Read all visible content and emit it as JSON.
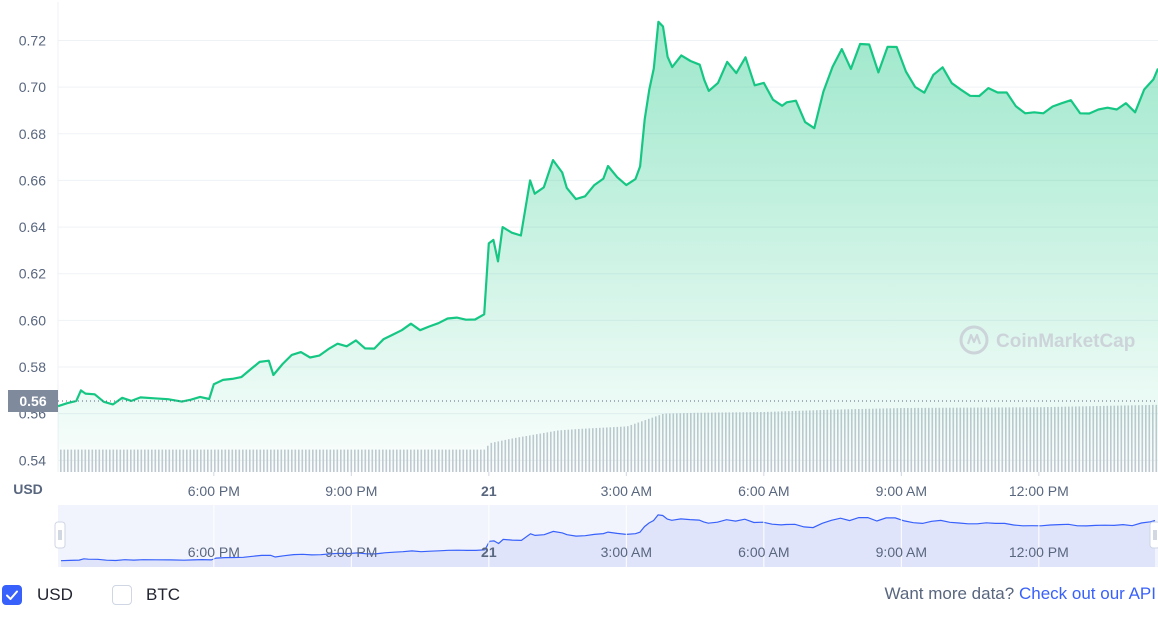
{
  "chart_data": {
    "type": "line",
    "title": "",
    "currency_label": "USD",
    "current_price_label": "0.56",
    "y_ticks": [
      "0.72",
      "0.70",
      "0.68",
      "0.66",
      "0.64",
      "0.62",
      "0.60",
      "0.58",
      "0.56",
      "0.54"
    ],
    "y_tick_values": [
      0.72,
      0.7,
      0.68,
      0.66,
      0.64,
      0.62,
      0.6,
      0.58,
      0.56,
      0.54
    ],
    "ylim": [
      0.535,
      0.7365
    ],
    "x_ticks": [
      {
        "label": "6:00 PM",
        "t": 18
      },
      {
        "label": "9:00 PM",
        "t": 21
      },
      {
        "label": "21",
        "t": 24
      },
      {
        "label": "3:00 AM",
        "t": 27
      },
      {
        "label": "6:00 AM",
        "t": 30
      },
      {
        "label": "9:00 AM",
        "t": 33
      },
      {
        "label": "12:00 PM",
        "t": 36
      }
    ],
    "x_range_hours": [
      14.6,
      38.6
    ],
    "series": [
      {
        "values": [
          [
            14.6,
            0.5632
          ],
          [
            14.8,
            0.5645
          ],
          [
            15.0,
            0.5655
          ],
          [
            15.1,
            0.57
          ],
          [
            15.2,
            0.5686
          ],
          [
            15.4,
            0.5683
          ],
          [
            15.6,
            0.5651
          ],
          [
            15.8,
            0.564
          ],
          [
            16.0,
            0.5668
          ],
          [
            16.2,
            0.5655
          ],
          [
            16.4,
            0.567
          ],
          [
            16.7,
            0.5666
          ],
          [
            17.0,
            0.5662
          ],
          [
            17.3,
            0.5652
          ],
          [
            17.5,
            0.566
          ],
          [
            17.7,
            0.5672
          ],
          [
            17.9,
            0.5663
          ],
          [
            18.0,
            0.5726
          ],
          [
            18.2,
            0.5745
          ],
          [
            18.4,
            0.5749
          ],
          [
            18.6,
            0.5757
          ],
          [
            18.8,
            0.579
          ],
          [
            19.0,
            0.5822
          ],
          [
            19.2,
            0.5827
          ],
          [
            19.3,
            0.5766
          ],
          [
            19.5,
            0.5813
          ],
          [
            19.7,
            0.5852
          ],
          [
            19.9,
            0.5864
          ],
          [
            20.1,
            0.5841
          ],
          [
            20.3,
            0.5849
          ],
          [
            20.5,
            0.5877
          ],
          [
            20.7,
            0.59
          ],
          [
            20.9,
            0.5889
          ],
          [
            21.1,
            0.5914
          ],
          [
            21.3,
            0.588
          ],
          [
            21.5,
            0.5879
          ],
          [
            21.7,
            0.5919
          ],
          [
            21.9,
            0.5938
          ],
          [
            22.1,
            0.5958
          ],
          [
            22.3,
            0.5986
          ],
          [
            22.5,
            0.5958
          ],
          [
            22.7,
            0.5974
          ],
          [
            22.9,
            0.5988
          ],
          [
            23.1,
            0.6008
          ],
          [
            23.3,
            0.6012
          ],
          [
            23.5,
            0.6003
          ],
          [
            23.7,
            0.6004
          ],
          [
            23.9,
            0.6026
          ],
          [
            24.0,
            0.633
          ],
          [
            24.1,
            0.6345
          ],
          [
            24.2,
            0.6253
          ],
          [
            24.3,
            0.64
          ],
          [
            24.5,
            0.6376
          ],
          [
            24.7,
            0.6364
          ],
          [
            24.9,
            0.66
          ],
          [
            25.0,
            0.6543
          ],
          [
            25.2,
            0.657
          ],
          [
            25.4,
            0.6687
          ],
          [
            25.6,
            0.6634
          ],
          [
            25.7,
            0.6568
          ],
          [
            25.9,
            0.652
          ],
          [
            26.1,
            0.6532
          ],
          [
            26.3,
            0.658
          ],
          [
            26.5,
            0.6608
          ],
          [
            26.6,
            0.6662
          ],
          [
            26.8,
            0.6614
          ],
          [
            27.0,
            0.658
          ],
          [
            27.2,
            0.6606
          ],
          [
            27.3,
            0.666
          ],
          [
            27.4,
            0.6862
          ],
          [
            27.5,
            0.699
          ],
          [
            27.6,
            0.708
          ],
          [
            27.7,
            0.728
          ],
          [
            27.8,
            0.726
          ],
          [
            27.9,
            0.713
          ],
          [
            28.0,
            0.7086
          ],
          [
            28.2,
            0.7136
          ],
          [
            28.4,
            0.7112
          ],
          [
            28.6,
            0.7096
          ],
          [
            28.7,
            0.703
          ],
          [
            28.8,
            0.6984
          ],
          [
            29.0,
            0.7018
          ],
          [
            29.2,
            0.7108
          ],
          [
            29.4,
            0.706
          ],
          [
            29.6,
            0.7128
          ],
          [
            29.8,
            0.7008
          ],
          [
            30.0,
            0.7018
          ],
          [
            30.2,
            0.6946
          ],
          [
            30.4,
            0.692
          ],
          [
            30.5,
            0.6935
          ],
          [
            30.7,
            0.6942
          ],
          [
            30.9,
            0.685
          ],
          [
            31.1,
            0.6824
          ],
          [
            31.3,
            0.6981
          ],
          [
            31.5,
            0.7087
          ],
          [
            31.7,
            0.7163
          ],
          [
            31.9,
            0.7078
          ],
          [
            32.1,
            0.7185
          ],
          [
            32.3,
            0.7183
          ],
          [
            32.5,
            0.7063
          ],
          [
            32.7,
            0.7173
          ],
          [
            32.9,
            0.7172
          ],
          [
            33.1,
            0.7067
          ],
          [
            33.3,
            0.7001
          ],
          [
            33.5,
            0.6976
          ],
          [
            33.7,
            0.7053
          ],
          [
            33.9,
            0.7085
          ],
          [
            34.1,
            0.7017
          ],
          [
            34.3,
            0.6989
          ],
          [
            34.5,
            0.6963
          ],
          [
            34.7,
            0.6962
          ],
          [
            34.9,
            0.6996
          ],
          [
            35.1,
            0.6977
          ],
          [
            35.3,
            0.6977
          ],
          [
            35.5,
            0.6918
          ],
          [
            35.7,
            0.6888
          ],
          [
            35.9,
            0.6892
          ],
          [
            36.1,
            0.6888
          ],
          [
            36.3,
            0.6917
          ],
          [
            36.5,
            0.6931
          ],
          [
            36.7,
            0.6944
          ],
          [
            36.9,
            0.6888
          ],
          [
            37.1,
            0.6887
          ],
          [
            37.3,
            0.6904
          ],
          [
            37.5,
            0.6912
          ],
          [
            37.7,
            0.6904
          ],
          [
            37.9,
            0.6931
          ],
          [
            38.1,
            0.6892
          ],
          [
            38.3,
            0.699
          ],
          [
            38.5,
            0.7033
          ],
          [
            38.6,
            0.708
          ]
        ]
      }
    ],
    "volume_relative": [
      [
        14.6,
        0.28
      ],
      [
        23.9,
        0.28
      ],
      [
        24.0,
        0.36
      ],
      [
        24.5,
        0.42
      ],
      [
        25.0,
        0.47
      ],
      [
        25.5,
        0.52
      ],
      [
        26.0,
        0.54
      ],
      [
        27.0,
        0.57
      ],
      [
        27.4,
        0.65
      ],
      [
        27.8,
        0.73
      ],
      [
        28.5,
        0.74
      ],
      [
        30.0,
        0.75
      ],
      [
        31.5,
        0.78
      ],
      [
        33.0,
        0.8
      ],
      [
        36.0,
        0.81
      ],
      [
        38.6,
        0.84
      ]
    ],
    "navigator_ticks": [
      "6:00 PM",
      "9:00 PM",
      "21",
      "3:00 AM",
      "6:00 AM",
      "9:00 AM",
      "12:00 PM"
    ],
    "watermark": "CoinMarketCap",
    "grid": true,
    "colors": {
      "line": "#16c784",
      "fill_top": "#16c784",
      "volume_bar": "#c4c9d3",
      "navigator_fill": "#dfe4fb",
      "navigator_line": "#3861fb",
      "price_badge": "#808a9d",
      "grid": "#eff2f5",
      "watermark": "#c9ced6"
    }
  },
  "footer": {
    "usd_label": "USD",
    "btc_label": "BTC",
    "api_prompt": "Want more data?",
    "api_link": "Check out our API"
  }
}
